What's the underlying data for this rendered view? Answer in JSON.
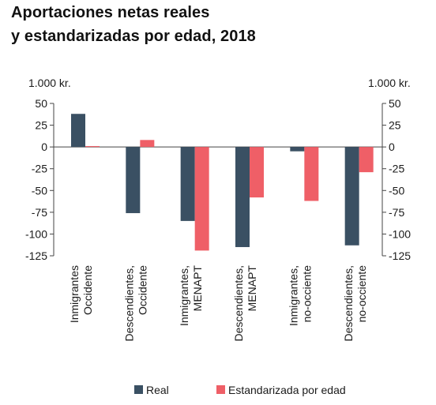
{
  "chart_data": {
    "type": "bar",
    "title_line1": "Aportaciones netas reales",
    "title_line2": "y estandarizadas por edad, 2018",
    "unit_left": "1.000 kr.",
    "unit_right": "1.000 kr.",
    "ylim": [
      -125,
      50
    ],
    "yticks": [
      50,
      25,
      0,
      -25,
      -50,
      -75,
      -100,
      -125
    ],
    "ytick_labels": [
      "50",
      "25",
      "0",
      "-25",
      "-50",
      "-75",
      "-100",
      "-125"
    ],
    "categories": [
      [
        "Inmigrantes",
        "Occidente"
      ],
      [
        "Descendientes,",
        "Occidente"
      ],
      [
        "Inmigrantes,",
        "MENAPT"
      ],
      [
        "Descendientes,",
        "MENAPT"
      ],
      [
        "Inmigrantes,",
        "no-occiente"
      ],
      [
        "Descendientes,",
        "no-occiente"
      ]
    ],
    "series": [
      {
        "name": "Real",
        "color": "#3a5063",
        "values": [
          38,
          -76,
          -85,
          -115,
          -5,
          -113
        ]
      },
      {
        "name": "Estandarizada por edad",
        "color": "#ef5f67",
        "values": [
          1,
          8,
          -119,
          -58,
          -62,
          -29
        ]
      }
    ],
    "grid": false,
    "legend": "bottom"
  }
}
